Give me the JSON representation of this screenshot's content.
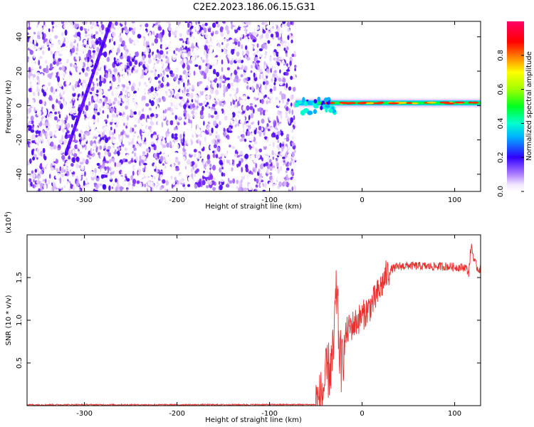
{
  "figure": {
    "title": "C2E2.2023.186.06.15.G31"
  },
  "chart_data": [
    {
      "type": "heatmap",
      "xlabel": "Height of straight line (km)",
      "ylabel": "Frequency (Hz)",
      "xlim": [
        -362,
        128
      ],
      "ylim": [
        -50,
        49
      ],
      "xticks": [
        -300,
        -200,
        -100,
        0,
        100
      ],
      "yticks": [
        -40,
        -20,
        0,
        20,
        40
      ],
      "colorbar": {
        "label": "Normalized spectral amplitude",
        "range": [
          0,
          1
        ],
        "ticks": [
          "0.0",
          "0.2",
          "0.4",
          "0.6",
          "0.8"
        ],
        "tick_values": [
          0.0,
          0.2,
          0.4,
          0.6,
          0.8
        ]
      },
      "features": {
        "noise_region_x": [
          -362,
          -72
        ],
        "signal_line_x": [
          -72,
          128
        ],
        "signal_frequency_hz": 1.5,
        "diagonal_streak": {
          "x": [
            -320,
            -272
          ],
          "y": [
            -28,
            48
          ]
        }
      },
      "grid": false
    },
    {
      "type": "line",
      "xlabel": "Height of straight line (km)",
      "ylabel": "SNR (10 * v/v)",
      "y_multiplier_label": "(x10",
      "y_multiplier_exponent": "4",
      "y_multiplier_close": ")",
      "xlim": [
        -362,
        128
      ],
      "ylim": [
        0,
        2.0
      ],
      "xticks": [
        -300,
        -200,
        -100,
        0,
        100
      ],
      "yticks": [
        0.5,
        1.0,
        1.5
      ],
      "ytick_labels": [
        "0.5",
        "1.0",
        "1.5"
      ],
      "series": [
        {
          "color": "#e8312f",
          "profile": [
            [
              -362,
              0.01
            ],
            [
              -200,
              0.01
            ],
            [
              -50,
              0.012
            ],
            [
              -46,
              0.04
            ],
            [
              -42,
              0.18
            ],
            [
              -38,
              0.38
            ],
            [
              -34,
              0.45
            ],
            [
              -31,
              0.6
            ],
            [
              -29,
              1.15
            ],
            [
              -27,
              1.35
            ],
            [
              -25,
              0.7
            ],
            [
              -22,
              0.45
            ],
            [
              -20,
              0.65
            ],
            [
              -17,
              0.85
            ],
            [
              -13,
              0.92
            ],
            [
              -8,
              0.96
            ],
            [
              -3,
              1.02
            ],
            [
              2,
              1.07
            ],
            [
              8,
              1.15
            ],
            [
              14,
              1.25
            ],
            [
              20,
              1.38
            ],
            [
              26,
              1.53
            ],
            [
              32,
              1.6
            ],
            [
              40,
              1.63
            ],
            [
              50,
              1.64
            ],
            [
              70,
              1.63
            ],
            [
              90,
              1.63
            ],
            [
              105,
              1.62
            ],
            [
              112,
              1.62
            ],
            [
              115,
              1.55
            ],
            [
              118,
              1.88
            ],
            [
              121,
              1.7
            ],
            [
              125,
              1.6
            ],
            [
              128,
              1.6
            ]
          ]
        }
      ],
      "grid": false
    }
  ]
}
